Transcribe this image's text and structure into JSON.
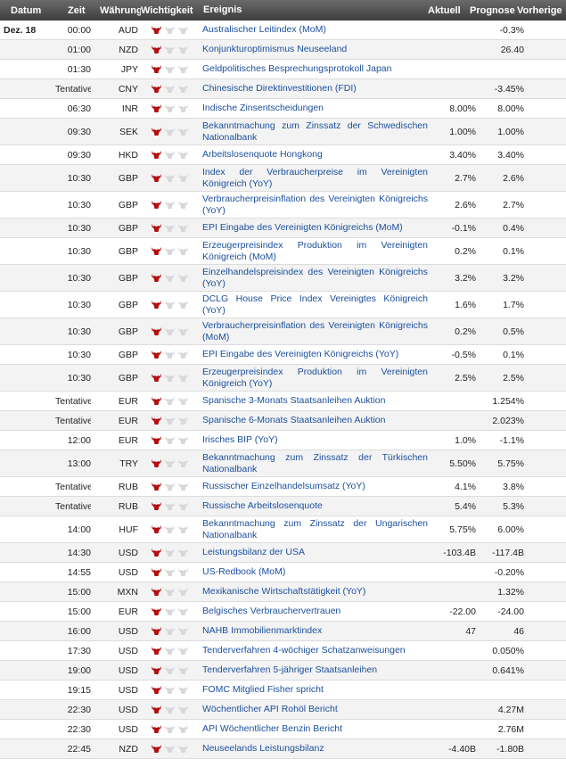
{
  "headers": {
    "date": "Datum",
    "time": "Zeit",
    "currency": "Währung",
    "importance": "Wichtigkeit",
    "event": "Ereignis",
    "actual": "Aktuell",
    "forecast": "Prognose",
    "previous": "Vorherige"
  },
  "colors": {
    "bull_active": "#b20f0f",
    "bull_inactive": "#d8d8d8",
    "link": "#1b4f9c"
  },
  "rows": [
    {
      "date": "Dez. 18",
      "time": "00:00",
      "cur": "AUD",
      "imp": 1,
      "event": "Australischer Leitindex (MoM)",
      "actual": "",
      "forecast": "",
      "previous": "-0.3%"
    },
    {
      "date": "",
      "time": "01:00",
      "cur": "NZD",
      "imp": 1,
      "event": "Konjunkturoptimismus Neuseeland",
      "actual": "",
      "forecast": "",
      "previous": "26.40"
    },
    {
      "date": "",
      "time": "01:30",
      "cur": "JPY",
      "imp": 1,
      "event": "Geldpolitisches Besprechungsprotokoll Japan",
      "actual": "",
      "forecast": "",
      "previous": ""
    },
    {
      "date": "",
      "time": "Tentative",
      "cur": "CNY",
      "imp": 1,
      "event": "Chinesische Direktinvestitionen (FDI)",
      "actual": "",
      "forecast": "",
      "previous": "-3.45%"
    },
    {
      "date": "",
      "time": "06:30",
      "cur": "INR",
      "imp": 1,
      "event": "Indische Zinsentscheidungen",
      "actual": "8.00%",
      "forecast": "",
      "previous": "8.00%"
    },
    {
      "date": "",
      "time": "09:30",
      "cur": "SEK",
      "imp": 1,
      "event": "Bekanntmachung zum Zinssatz der Schwedischen Nationalbank",
      "actual": "1.00%",
      "forecast": "",
      "previous": "1.00%"
    },
    {
      "date": "",
      "time": "09:30",
      "cur": "HKD",
      "imp": 1,
      "event": "Arbeitslosenquote Hongkong",
      "actual": "3.40%",
      "forecast": "",
      "previous": "3.40%"
    },
    {
      "date": "",
      "time": "10:30",
      "cur": "GBP",
      "imp": 1,
      "event": "Index der Verbraucherpreise im Vereinigten Königreich (YoY)",
      "actual": "2.7%",
      "forecast": "",
      "previous": "2.6%"
    },
    {
      "date": "",
      "time": "10:30",
      "cur": "GBP",
      "imp": 1,
      "event": "Verbraucherpreisinflation des Vereinigten Königreichs (YoY)",
      "actual": "2.6%",
      "forecast": "",
      "previous": "2.7%"
    },
    {
      "date": "",
      "time": "10:30",
      "cur": "GBP",
      "imp": 1,
      "event": "EPI Eingabe des Vereinigten Königreichs (MoM)",
      "actual": "-0.1%",
      "forecast": "",
      "previous": "0.4%"
    },
    {
      "date": "",
      "time": "10:30",
      "cur": "GBP",
      "imp": 1,
      "event": "Erzeugerpreisindex Produktion im Vereinigten Königreich (MoM)",
      "actual": "0.2%",
      "forecast": "",
      "previous": "0.1%"
    },
    {
      "date": "",
      "time": "10:30",
      "cur": "GBP",
      "imp": 1,
      "event": "Einzelhandelspreisindex des Vereinigten Königreichs (YoY)",
      "actual": "3.2%",
      "forecast": "",
      "previous": "3.2%"
    },
    {
      "date": "",
      "time": "10:30",
      "cur": "GBP",
      "imp": 1,
      "event": "DCLG House Price Index Vereinigtes Königreich (YoY)",
      "actual": "1.6%",
      "forecast": "",
      "previous": "1.7%"
    },
    {
      "date": "",
      "time": "10:30",
      "cur": "GBP",
      "imp": 1,
      "event": "Verbraucherpreisinflation des Vereinigten Königreichs (MoM)",
      "actual": "0.2%",
      "forecast": "",
      "previous": "0.5%"
    },
    {
      "date": "",
      "time": "10:30",
      "cur": "GBP",
      "imp": 1,
      "event": "EPI Eingabe des Vereinigten Königreichs (YoY)",
      "actual": "-0.5%",
      "forecast": "",
      "previous": "0.1%"
    },
    {
      "date": "",
      "time": "10:30",
      "cur": "GBP",
      "imp": 1,
      "event": "Erzeugerpreisindex Produktion im Vereinigten Königreich (YoY)",
      "actual": "2.5%",
      "forecast": "",
      "previous": "2.5%"
    },
    {
      "date": "",
      "time": "Tentative",
      "cur": "EUR",
      "imp": 1,
      "event": "Spanische 3-Monats Staatsanleihen Auktion",
      "actual": "",
      "forecast": "",
      "previous": "1.254%"
    },
    {
      "date": "",
      "time": "Tentative",
      "cur": "EUR",
      "imp": 1,
      "event": "Spanische 6-Monats Staatsanleihen Auktion",
      "actual": "",
      "forecast": "",
      "previous": "2.023%"
    },
    {
      "date": "",
      "time": "12:00",
      "cur": "EUR",
      "imp": 1,
      "event": "Irisches BIP (YoY)",
      "actual": "1.0%",
      "forecast": "",
      "previous": "-1.1%"
    },
    {
      "date": "",
      "time": "13:00",
      "cur": "TRY",
      "imp": 1,
      "event": "Bekanntmachung zum Zinssatz der Türkischen Nationalbank",
      "actual": "5.50%",
      "forecast": "",
      "previous": "5.75%"
    },
    {
      "date": "",
      "time": "Tentative",
      "cur": "RUB",
      "imp": 1,
      "event": "Russischer Einzelhandelsumsatz (YoY)",
      "actual": "4.1%",
      "forecast": "",
      "previous": "3.8%"
    },
    {
      "date": "",
      "time": "Tentative",
      "cur": "RUB",
      "imp": 1,
      "event": "Russische Arbeitslosenquote",
      "actual": "5.4%",
      "forecast": "",
      "previous": "5.3%"
    },
    {
      "date": "",
      "time": "14:00",
      "cur": "HUF",
      "imp": 1,
      "event": "Bekanntmachung zum Zinssatz der Ungarischen Nationalbank",
      "actual": "5.75%",
      "forecast": "",
      "previous": "6.00%"
    },
    {
      "date": "",
      "time": "14:30",
      "cur": "USD",
      "imp": 1,
      "event": "Leistungsbilanz der USA",
      "actual": "-103.4B",
      "forecast": "",
      "previous": "-117.4B"
    },
    {
      "date": "",
      "time": "14:55",
      "cur": "USD",
      "imp": 1,
      "event": "US-Redbook (MoM)",
      "actual": "",
      "forecast": "",
      "previous": "-0.20%"
    },
    {
      "date": "",
      "time": "15:00",
      "cur": "MXN",
      "imp": 1,
      "event": "Mexikanische Wirtschaftstätigkeit (YoY)",
      "actual": "",
      "forecast": "",
      "previous": "1.32%"
    },
    {
      "date": "",
      "time": "15:00",
      "cur": "EUR",
      "imp": 1,
      "event": "Belgisches Verbrauchervertrauen",
      "actual": "-22.00",
      "forecast": "",
      "previous": "-24.00"
    },
    {
      "date": "",
      "time": "16:00",
      "cur": "USD",
      "imp": 1,
      "event": "NAHB Immobilienmarktindex",
      "actual": "47",
      "forecast": "",
      "previous": "46"
    },
    {
      "date": "",
      "time": "17:30",
      "cur": "USD",
      "imp": 1,
      "event": "Tenderverfahren 4-wöchiger Schatzanweisungen",
      "actual": "",
      "forecast": "",
      "previous": "0.050%"
    },
    {
      "date": "",
      "time": "19:00",
      "cur": "USD",
      "imp": 1,
      "event": "Tenderverfahren 5-jähriger Staatsanleihen",
      "actual": "",
      "forecast": "",
      "previous": "0.641%"
    },
    {
      "date": "",
      "time": "19:15",
      "cur": "USD",
      "imp": 1,
      "event": "FOMC Mitglied Fisher spricht",
      "actual": "",
      "forecast": "",
      "previous": ""
    },
    {
      "date": "",
      "time": "22:30",
      "cur": "USD",
      "imp": 1,
      "event": "Wöchentlicher API Rohöl Bericht",
      "actual": "",
      "forecast": "",
      "previous": "4.27M"
    },
    {
      "date": "",
      "time": "22:30",
      "cur": "USD",
      "imp": 1,
      "event": "API Wöchentlicher Benzin Bericht",
      "actual": "",
      "forecast": "",
      "previous": "2.76M"
    },
    {
      "date": "",
      "time": "22:45",
      "cur": "NZD",
      "imp": 1,
      "event": "Neuseelands Leistungsbilanz",
      "actual": "-4.40B",
      "forecast": "",
      "previous": "-1.80B"
    }
  ]
}
